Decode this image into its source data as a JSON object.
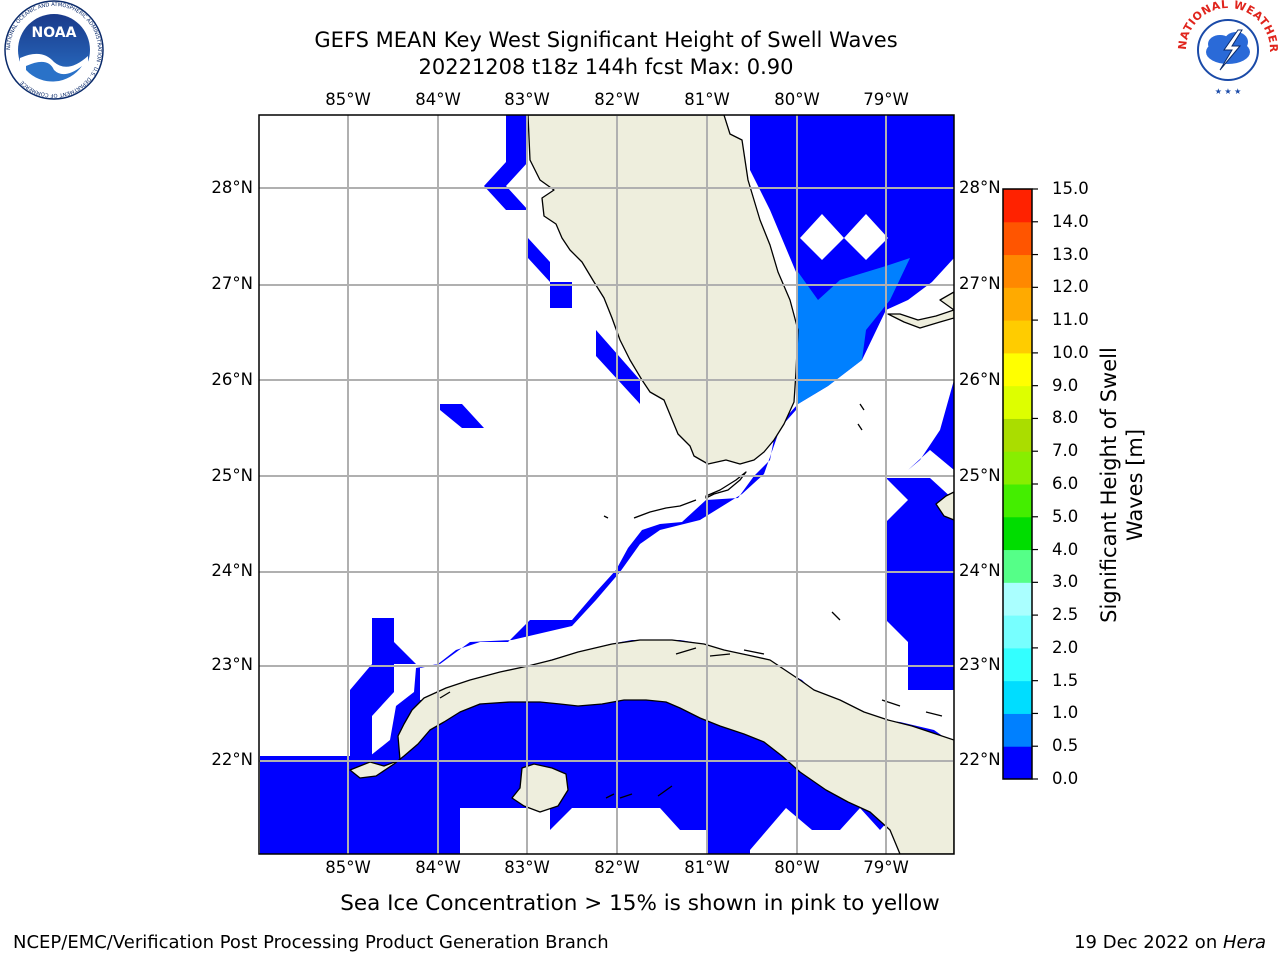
{
  "title_line1": "GEFS MEAN Key West Significant Height of Swell Waves",
  "title_line2": "20221208 t18z 144h fcst   Max: 0.90",
  "logos": {
    "noaa": {
      "text": "NOAA",
      "ring_text": "NATIONAL OCEANIC AND ATMOSPHERIC ADMINISTRATION · U.S. DEPARTMENT OF COMMERCE"
    },
    "nws": {
      "ring_text": "NATIONAL WEATHER SERVICE"
    }
  },
  "map": {
    "lon_ticks": [
      "85°W",
      "84°W",
      "83°W",
      "82°W",
      "81°W",
      "80°W",
      "79°W"
    ],
    "lat_ticks": [
      "28°N",
      "27°N",
      "26°N",
      "25°N",
      "24°N",
      "23°N",
      "22°N"
    ],
    "colors": {
      "land": "#eeeedd",
      "water": "#ffffff",
      "grid": "#b0b0b0",
      "coast": "#000000"
    }
  },
  "colorbar": {
    "label": "Significant Height of Swell Waves [m]",
    "label_line1": "Significant Height of Swell",
    "label_line2": "Waves [m]",
    "ticks": [
      "0.0",
      "0.5",
      "1.0",
      "1.5",
      "2.0",
      "2.5",
      "3.0",
      "4.0",
      "5.0",
      "6.0",
      "7.0",
      "8.0",
      "9.0",
      "10.0",
      "11.0",
      "12.0",
      "13.0",
      "14.0",
      "15.0"
    ],
    "colors": [
      "#0000ff",
      "#0080ff",
      "#00ddff",
      "#33ffff",
      "#77ffff",
      "#aaffff",
      "#55ff88",
      "#00dd00",
      "#44ee00",
      "#88ee00",
      "#aadd00",
      "#ddff00",
      "#ffff00",
      "#ffcc00",
      "#ffaa00",
      "#ff8800",
      "#ff5500",
      "#ff2200",
      "#ff0000"
    ]
  },
  "chart_data": {
    "type": "heatmap",
    "title": "GEFS MEAN Key West Significant Height of Swell Waves",
    "subtitle": "20221208 t18z 144h fcst   Max: 0.90",
    "xlim": [
      -86,
      -78.25
    ],
    "ylim": [
      21,
      28.75
    ],
    "max_value": 0.9,
    "value_bins": [
      {
        "range": "0.0-0.5",
        "color": "#0000ff",
        "region": "Straits of Florida, Atlantic east of Florida, waters south of Cuba"
      },
      {
        "range": "0.5-1.0",
        "color": "#0080ff",
        "region": "Atlantic off SE Florida coast, approx 25.8°N-27.2°N, 80°W-79.3°W"
      }
    ]
  },
  "notes": {
    "sea_ice": "Sea Ice Concentration > 15% is shown in pink to yellow"
  },
  "footer": {
    "left": "NCEP/EMC/Verification Post Processing Product Generation Branch",
    "right_date": "19 Dec 2022 on ",
    "right_host": "Hera"
  }
}
